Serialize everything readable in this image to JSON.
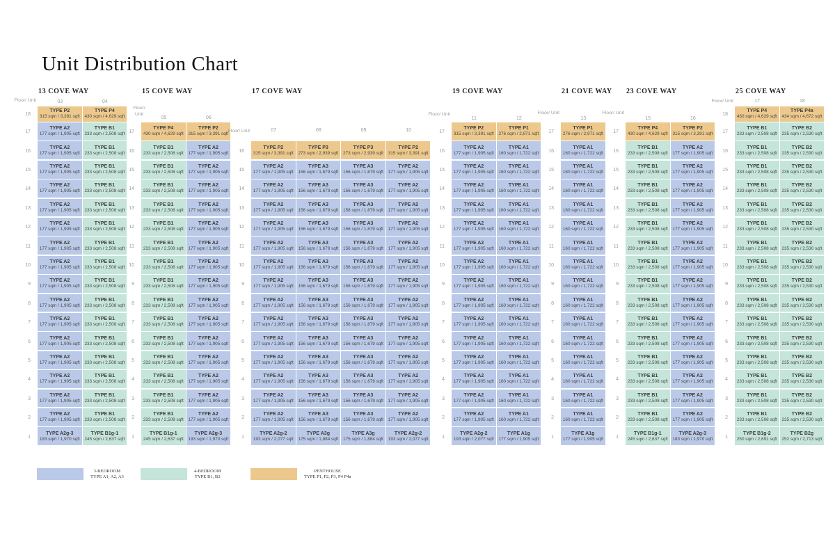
{
  "chart_data": {
    "type": "table",
    "title": "Unit Distribution Chart",
    "floor_unit_label": "Floor/ Unit",
    "floor_unit_label_lines": [
      "Floor/",
      "Unit"
    ],
    "colors": {
      "bedroom3": "#bac9e8",
      "bedroom4": "#c5e4da",
      "penthouse": "#ecc88d",
      "background": "#ffffff",
      "cell_text": "#3f3f3a",
      "muted_label": "#9b9b9b"
    },
    "unit_types": {
      "A1": {
        "label": "TYPE A1",
        "size": "160 sqm / 1,722 sqft",
        "cat": "bedroom3"
      },
      "A2": {
        "label": "TYPE A2",
        "size": "177 sqm / 1,905 sqft",
        "cat": "bedroom3"
      },
      "A3": {
        "label": "TYPE A3",
        "size": "156 sqm / 1,679 sqft",
        "cat": "bedroom3"
      },
      "A1g": {
        "label": "TYPE A1g",
        "size": "177 sqm / 1,905 sqft",
        "cat": "bedroom3"
      },
      "A2g-2": {
        "label": "TYPE A2g-2",
        "size": "193 sqm / 2,077 sqft",
        "cat": "bedroom3"
      },
      "A2g-3": {
        "label": "TYPE A2g-3",
        "size": "183 sqm / 1,970 sqft",
        "cat": "bedroom3"
      },
      "A3g": {
        "label": "TYPE A3g",
        "size": "175 sqm / 1,884 sqft",
        "cat": "bedroom3"
      },
      "B1": {
        "label": "TYPE B1",
        "size": "233 sqm / 2,508 sqft",
        "cat": "bedroom4"
      },
      "B2": {
        "label": "TYPE B2",
        "size": "235 sqm / 2,530 sqft",
        "cat": "bedroom4"
      },
      "B1g-1": {
        "label": "TYPE B1g-1",
        "size": "245 sqm / 2,637 sqft",
        "cat": "bedroom4"
      },
      "B1g-2": {
        "label": "TYPE B1g-2",
        "size": "250 sqm / 2,691 sqft",
        "cat": "bedroom4"
      },
      "B2g": {
        "label": "TYPE B2g",
        "size": "252 sqm / 2,713 sqft",
        "cat": "bedroom4"
      },
      "P1": {
        "label": "TYPE P1",
        "size": "276 sqm / 2,971 sqft",
        "cat": "penthouse"
      },
      "P2": {
        "label": "TYPE P2",
        "size": "315 sqm / 3,391 sqft",
        "cat": "penthouse"
      },
      "P3": {
        "label": "TYPE P3",
        "size": "273 sqm / 2,939 sqft",
        "cat": "penthouse"
      },
      "P4": {
        "label": "TYPE P4",
        "size": "430 sqm / 4,629 sqft",
        "cat": "penthouse"
      },
      "P4a": {
        "label": "TYPE P4a",
        "size": "434 sqm / 4,672 sqft",
        "cat": "penthouse"
      }
    },
    "buildings": [
      {
        "name": "13 COVE WAY",
        "top_floor": 18,
        "bottom_floor": 1,
        "units": [
          "03",
          "04"
        ],
        "stacks": [
          {
            "top": "P2",
            "mid": "A2",
            "ground": "A2g-3"
          },
          {
            "top": "P4",
            "mid": "B1",
            "ground": "B1g-1"
          }
        ]
      },
      {
        "name": "15 COVE WAY",
        "top_floor": 17,
        "bottom_floor": 1,
        "units": [
          "05",
          "06"
        ],
        "stacks": [
          {
            "top": "P4",
            "mid": "B1",
            "ground": "B1g-1"
          },
          {
            "top": "P2",
            "mid": "A2",
            "ground": "A2g-3"
          }
        ]
      },
      {
        "name": "17 COVE WAY",
        "top_floor": 16,
        "bottom_floor": 1,
        "units": [
          "07",
          "08",
          "09",
          "10"
        ],
        "stacks": [
          {
            "top": "P2",
            "mid": "A2",
            "ground": "A2g-2"
          },
          {
            "top": "P3",
            "mid": "A3",
            "ground": "A3g"
          },
          {
            "top": "P3",
            "mid": "A3",
            "ground": "A3g"
          },
          {
            "top": "P2",
            "mid": "A2",
            "ground": "A2g-2"
          }
        ]
      },
      {
        "name": "19 COVE WAY",
        "top_floor": 17,
        "bottom_floor": 1,
        "units": [
          "11",
          "12"
        ],
        "stacks": [
          {
            "top": "P2",
            "mid": "A2",
            "ground": "A2g-2"
          },
          {
            "top": "P1",
            "mid": "A1",
            "ground": "A1g"
          }
        ]
      },
      {
        "name": "21 COVE WAY",
        "top_floor": 17,
        "bottom_floor": 1,
        "units": [
          "13"
        ],
        "stacks": [
          {
            "top": "P1",
            "mid": "A1",
            "ground": "A1g"
          }
        ]
      },
      {
        "name": "23 COVE WAY",
        "top_floor": 17,
        "bottom_floor": 1,
        "units": [
          "15",
          "16"
        ],
        "stacks": [
          {
            "top": "P4",
            "mid": "B1",
            "ground": "B1g-1"
          },
          {
            "top": "P2",
            "mid": "A2",
            "ground": "A2g-3"
          }
        ]
      },
      {
        "name": "25 COVE WAY",
        "top_floor": 18,
        "bottom_floor": 1,
        "units": [
          "17",
          "18"
        ],
        "stacks": [
          {
            "top": "P4",
            "mid": "B1",
            "ground": "B1g-2"
          },
          {
            "top": "P4a",
            "mid": "B2",
            "ground": "B2g"
          }
        ]
      }
    ],
    "legend": [
      {
        "cat": "bedroom3",
        "line1": "3-BEDROOM",
        "line2": "TYPE A1, A2, A3"
      },
      {
        "cat": "bedroom4",
        "line1": "4-BEDROOM",
        "line2": "TYPE B1, B2"
      },
      {
        "cat": "penthouse",
        "line1": "PENTHOUSE",
        "line2": "TYPE P1, P2, P3, P4 P4a"
      }
    ]
  }
}
